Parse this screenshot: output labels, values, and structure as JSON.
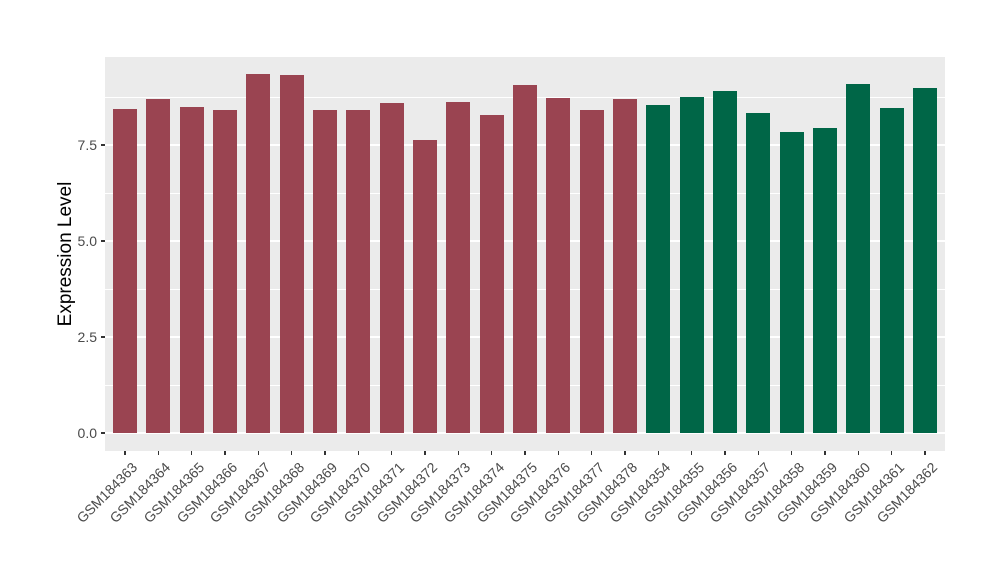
{
  "chart_data": {
    "type": "bar",
    "title": "",
    "xlabel": "",
    "ylabel": "Expression Level",
    "ylim": [
      0,
      9.8
    ],
    "ytick_labels": [
      "0.0",
      "2.5",
      "5.0",
      "7.5"
    ],
    "ytick_values": [
      0,
      2.5,
      5,
      7.5
    ],
    "yminor_values": [
      1.25,
      3.75,
      6.25,
      8.75
    ],
    "grid": true,
    "legend": "none",
    "categories": [
      "GSM184363",
      "GSM184364",
      "GSM184365",
      "GSM184366",
      "GSM184367",
      "GSM184368",
      "GSM184369",
      "GSM184370",
      "GSM184371",
      "GSM184372",
      "GSM184373",
      "GSM184374",
      "GSM184375",
      "GSM184376",
      "GSM184377",
      "GSM184378",
      "GSM184354",
      "GSM184355",
      "GSM184356",
      "GSM184357",
      "GSM184358",
      "GSM184359",
      "GSM184360",
      "GSM184361",
      "GSM184362"
    ],
    "values": [
      8.45,
      8.7,
      8.5,
      8.4,
      9.34,
      9.31,
      8.4,
      8.4,
      8.6,
      7.64,
      8.61,
      8.28,
      9.05,
      8.72,
      8.42,
      8.71,
      8.53,
      8.76,
      8.9,
      8.34,
      7.83,
      7.95,
      9.1,
      8.47,
      8.98
    ],
    "bar_colors": [
      "#9A4451",
      "#9A4451",
      "#9A4451",
      "#9A4451",
      "#9A4451",
      "#9A4451",
      "#9A4451",
      "#9A4451",
      "#9A4451",
      "#9A4451",
      "#9A4451",
      "#9A4451",
      "#9A4451",
      "#9A4451",
      "#9A4451",
      "#9A4451",
      "#006647",
      "#006647",
      "#006647",
      "#006647",
      "#006647",
      "#006647",
      "#006647",
      "#006647",
      "#006647"
    ],
    "group_colors": {
      "left_group": "#9A4451",
      "right_group": "#006647"
    },
    "panel_background": "#EBEBEB",
    "grid_color": "#FFFFFF"
  }
}
